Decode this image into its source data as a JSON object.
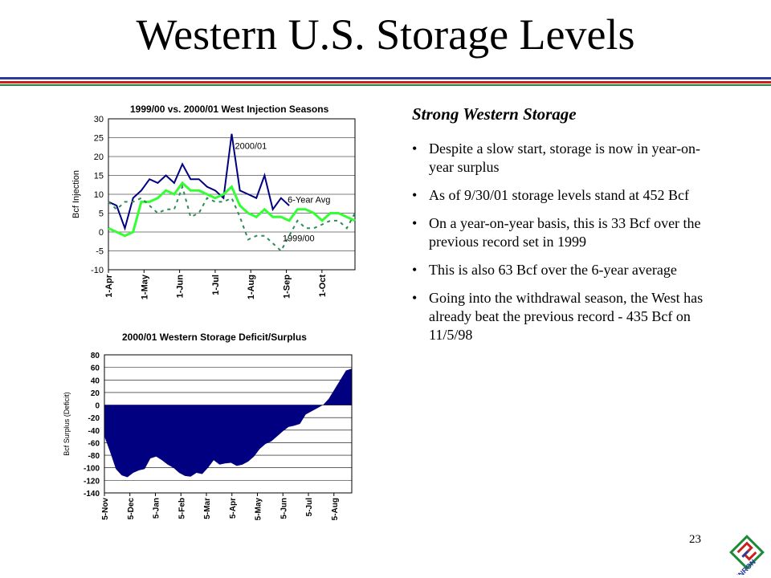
{
  "slide": {
    "title": "Western U.S. Storage Levels",
    "heading": "Strong Western Storage",
    "bullets": [
      "Despite a slow start, storage is now in year-on-year surplus",
      "As of 9/30/01 storage levels stand at 452 Bcf",
      "On a year-on-year basis, this is 33 Bcf over the previous record set in 1999",
      "This is also 63 Bcf over the 6-year average",
      "Going into the withdrawal season, the West has already beat the previous record - 435 Bcf on 11/5/98"
    ],
    "page_number": "23",
    "logo_text": "ENRON",
    "colors": {
      "rule_blue": "#2a3c9a",
      "rule_red": "#c8211d",
      "rule_green": "#1d8a3a",
      "navy": "#000080",
      "green": "#33ff33",
      "teal": "#2e8b57"
    }
  },
  "chart_data": [
    {
      "type": "line",
      "title": "1999/00 vs. 2000/01 West Injection Seasons",
      "ylabel": "Bcf Injection",
      "ylim": [
        -10,
        30
      ],
      "yticks": [
        "30",
        "25",
        "20",
        "15",
        "10",
        "5",
        "0",
        "-5",
        "-10"
      ],
      "xticks": [
        "1-Apr",
        "1-May",
        "1-Jun",
        "1-Jul",
        "1-Aug",
        "1-Sep",
        "1-Oct"
      ],
      "x": [
        "4/1",
        "4/8",
        "4/15",
        "4/22",
        "4/29",
        "5/6",
        "5/13",
        "5/20",
        "5/27",
        "6/3",
        "6/10",
        "6/17",
        "6/24",
        "7/1",
        "7/8",
        "7/15",
        "7/22",
        "7/29",
        "8/5",
        "8/12",
        "8/19",
        "8/26",
        "9/2",
        "9/9",
        "9/16",
        "9/23",
        "9/30",
        "10/7",
        "10/14",
        "10/21",
        "10/28"
      ],
      "grid": true,
      "series": [
        {
          "name": "2000/01",
          "style": "solid",
          "color": "#000080",
          "values": [
            8,
            7,
            1,
            9,
            11,
            14,
            13,
            15,
            13,
            18,
            14,
            14,
            12,
            11,
            9,
            26,
            11,
            10,
            9,
            15,
            6,
            9,
            7,
            null,
            null,
            null,
            null,
            null,
            null,
            null,
            null
          ]
        },
        {
          "name": "6-Year Avg",
          "style": "solid",
          "color": "#33ff33",
          "values": [
            1,
            0,
            -1,
            0,
            8,
            8,
            9,
            11,
            10,
            13,
            11,
            11,
            10,
            9,
            10,
            12,
            7,
            5,
            4,
            6,
            4,
            4,
            3,
            6,
            6,
            5,
            3,
            5,
            5,
            4,
            3
          ]
        },
        {
          "name": "1999/00",
          "style": "dashed",
          "color": "#2e8b57",
          "values": [
            8,
            6,
            8,
            8,
            9,
            7,
            5,
            6,
            6,
            12,
            4,
            5,
            9,
            8,
            8,
            9,
            4,
            -2,
            -1,
            -1,
            -3,
            -5,
            -1,
            3,
            1,
            1,
            2,
            3,
            3,
            1,
            5
          ]
        }
      ],
      "annotations": [
        "2000/01",
        "6-Year Avg",
        "1999/00"
      ]
    },
    {
      "type": "area",
      "title": "2000/01 Western Storage Deficit/Surplus",
      "ylabel": "Bcf Surplus (Deficit)",
      "ylim": [
        -140,
        80
      ],
      "yticks": [
        "80",
        "60",
        "40",
        "20",
        "0",
        "-20",
        "-40",
        "-60",
        "-80",
        "-100",
        "-120",
        "-140"
      ],
      "xticks": [
        "5-Nov",
        "5-Dec",
        "5-Jan",
        "5-Feb",
        "5-Mar",
        "5-Apr",
        "5-May",
        "5-Jun",
        "5-Jul",
        "5-Aug"
      ],
      "grid": true,
      "series": [
        {
          "name": "",
          "color": "#000080",
          "values": [
            -50,
            -75,
            -102,
            -112,
            -115,
            -108,
            -104,
            -102,
            -85,
            -82,
            -88,
            -95,
            -100,
            -108,
            -113,
            -114,
            -108,
            -110,
            -100,
            -88,
            -95,
            -93,
            -92,
            -97,
            -95,
            -90,
            -82,
            -70,
            -62,
            -58,
            -50,
            -42,
            -35,
            -33,
            -30,
            -15,
            -10,
            -5,
            0,
            10,
            25,
            40,
            55,
            58
          ]
        }
      ]
    }
  ]
}
